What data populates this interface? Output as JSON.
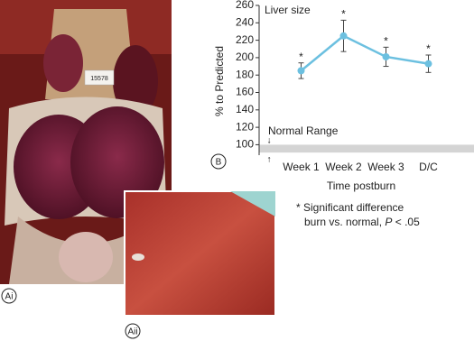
{
  "chart_data": {
    "type": "line",
    "title": "Liver size",
    "x_label": "Time postburn",
    "y_label": "% to Predicted",
    "categories": [
      "Week 1",
      "Week 2",
      "Week 3",
      "D/C"
    ],
    "series": [
      {
        "color": "#6cc0e0",
        "values": [
          185,
          225,
          201,
          193
        ],
        "errors": [
          9,
          18,
          11,
          10
        ]
      }
    ],
    "significance_markers": [
      "*",
      "*",
      "*",
      "*"
    ],
    "ylim": [
      88,
      260
    ],
    "yticks": [
      100,
      120,
      140,
      160,
      180,
      200,
      220,
      240,
      260
    ],
    "normal_range": {
      "label": "Normal Range",
      "range": [
        91,
        100
      ]
    }
  },
  "figure": {
    "panel_labels": {
      "ai": "Ai",
      "aii": "Aii",
      "b": "B"
    },
    "tag_text": "15578",
    "footnote": {
      "line1": "* Significant difference",
      "line2": "burn vs. normal, ",
      "variable": "P",
      "line2_end": " < .05"
    }
  }
}
